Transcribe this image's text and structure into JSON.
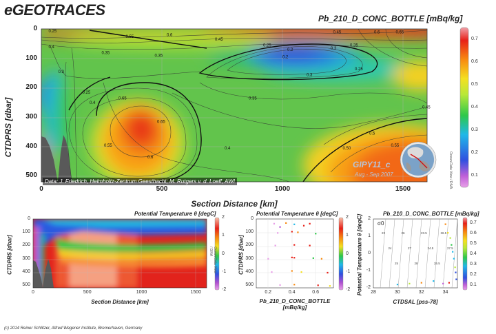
{
  "brand": "eGEOTRACES",
  "main": {
    "parameter": "Pb_210_D_CONC_BOTTLE [mBq/kg]",
    "ylabel": "CTDPRS [dbar]",
    "xlabel": "Section Distance [km]",
    "data_credit": "Data: J. Friedrich, Helmholtz-Zentrum Geesthacht; M. Rutgers v. d. Loeff, AWI",
    "cruise": "GIPY11_c",
    "cruise_date": "Aug - Sep 2007",
    "odv_label": "Ocean Data View / DIVA"
  },
  "panel_temp": {
    "title": "Potential Temperature θ [degC]",
    "ylabel": "CTDPRS [dbar]",
    "xlabel": "Section Distance [km]"
  },
  "panel_profile": {
    "title": "Potential Temperature θ [degC]",
    "ylabel": "CTDPRS [dbar]",
    "xlabel": "Pb_210_D_CONC_BOTTLE [mBq/kg]"
  },
  "panel_ts": {
    "title": "Pb_210_D_CONC_BOTTLE [mBq/kg]",
    "ylabel": "Potential Temperature θ [degC]",
    "xlabel": "CTDSAL [pss-78]",
    "sigma_label": "σ0"
  },
  "copyright": "(c) 2014 Reiner Schlitzer, Alfred Wegener Institute, Bremerhaven, Germany",
  "chart_data": [
    {
      "type": "heatmap",
      "title": "Pb_210_D_CONC_BOTTLE [mBq/kg]",
      "xlabel": "Section Distance [km]",
      "ylabel": "CTDPRS [dbar]",
      "xlim": [
        0,
        1600
      ],
      "ylim": [
        520,
        0
      ],
      "xticks": [
        0,
        500,
        1000,
        1500
      ],
      "yticks": [
        0,
        100,
        200,
        300,
        400,
        500
      ],
      "colorbar": {
        "ticks": [
          0.1,
          0.2,
          0.3,
          0.4,
          0.5,
          0.6,
          0.7
        ],
        "range": [
          0.05,
          0.75
        ]
      },
      "features": [
        {
          "x": 480,
          "y": 320,
          "value": 0.65,
          "label": "0.65"
        },
        {
          "x": 1000,
          "y": 100,
          "value": 0.2,
          "label": "0.2"
        },
        {
          "x": 1450,
          "y": 400,
          "value": 0.55,
          "label": "0.55"
        }
      ],
      "contour_labels": [
        {
          "x": 30,
          "y": 12,
          "label": "0.25"
        },
        {
          "x": 350,
          "y": 30,
          "label": "0.55"
        },
        {
          "x": 520,
          "y": 25,
          "label": "0.6"
        },
        {
          "x": 720,
          "y": 40,
          "label": "0.45"
        },
        {
          "x": 1210,
          "y": 15,
          "label": "0.45"
        },
        {
          "x": 1380,
          "y": 15,
          "label": "0.6"
        },
        {
          "x": 1470,
          "y": 15,
          "label": "0.65"
        },
        {
          "x": 30,
          "y": 65,
          "label": "0.4"
        },
        {
          "x": 250,
          "y": 85,
          "label": "0.35"
        },
        {
          "x": 470,
          "y": 95,
          "label": "0.35"
        },
        {
          "x": 70,
          "y": 150,
          "label": "0.3"
        },
        {
          "x": 920,
          "y": 60,
          "label": "0.25"
        },
        {
          "x": 1020,
          "y": 75,
          "label": "0.2"
        },
        {
          "x": 1200,
          "y": 70,
          "label": "0.3"
        },
        {
          "x": 1280,
          "y": 60,
          "label": "0.35"
        },
        {
          "x": 1300,
          "y": 140,
          "label": "0.25"
        },
        {
          "x": 200,
          "y": 255,
          "label": "0.4"
        },
        {
          "x": 170,
          "y": 220,
          "label": "0.25"
        },
        {
          "x": 260,
          "y": 400,
          "label": "0.55"
        },
        {
          "x": 440,
          "y": 440,
          "label": "0.6"
        },
        {
          "x": 860,
          "y": 240,
          "label": "0.35"
        },
        {
          "x": 760,
          "y": 410,
          "label": "0.4"
        },
        {
          "x": 1360,
          "y": 360,
          "label": "0.5"
        },
        {
          "x": 1250,
          "y": 410,
          "label": "0.50"
        },
        {
          "x": 1580,
          "y": 270,
          "label": "0.45"
        },
        {
          "x": 1100,
          "y": 160,
          "label": "0.3"
        },
        {
          "x": 320,
          "y": 240,
          "label": "0.65"
        }
      ]
    },
    {
      "type": "heatmap",
      "title": "Potential Temperature θ [degC]",
      "xlabel": "Section Distance [km]",
      "ylabel": "CTDPRS [dbar]",
      "xlim": [
        0,
        1600
      ],
      "ylim": [
        520,
        0
      ],
      "xticks": [
        0,
        500,
        1000,
        1500
      ],
      "yticks": [
        0,
        100,
        200,
        300,
        400,
        500
      ],
      "colorbar": {
        "ticks": [
          -2,
          -1,
          0,
          1,
          2
        ],
        "range": [
          -2,
          2
        ]
      }
    },
    {
      "type": "scatter",
      "title": "Potential Temperature θ [degC]",
      "xlabel": "Pb_210_D_CONC_BOTTLE [mBq/kg]",
      "ylabel": "CTDPRS [dbar]",
      "xlim": [
        0.1,
        0.75
      ],
      "ylim": [
        520,
        0
      ],
      "xticks": [
        0.2,
        0.4,
        0.6
      ],
      "yticks": [
        0,
        100,
        200,
        300,
        400,
        500
      ],
      "colorbar": {
        "ticks": [
          -2,
          -1,
          0,
          1,
          2
        ],
        "range": [
          -2,
          2
        ]
      },
      "points": [
        {
          "x": 0.25,
          "y": 35,
          "c": -1.8
        },
        {
          "x": 0.35,
          "y": 30,
          "c": 1.2
        },
        {
          "x": 0.42,
          "y": 40,
          "c": -0.5
        },
        {
          "x": 0.5,
          "y": 50,
          "c": 1.8
        },
        {
          "x": 0.3,
          "y": 60,
          "c": -1.5
        },
        {
          "x": 0.55,
          "y": 35,
          "c": 1.5
        },
        {
          "x": 0.4,
          "y": 95,
          "c": 1.6
        },
        {
          "x": 0.45,
          "y": 100,
          "c": 1.0
        },
        {
          "x": 0.28,
          "y": 105,
          "c": -1.8
        },
        {
          "x": 0.6,
          "y": 110,
          "c": 0.3
        },
        {
          "x": 0.42,
          "y": 195,
          "c": 1.5
        },
        {
          "x": 0.55,
          "y": 200,
          "c": 1.4
        },
        {
          "x": 0.26,
          "y": 200,
          "c": -1.7
        },
        {
          "x": 0.4,
          "y": 290,
          "c": 1.5
        },
        {
          "x": 0.42,
          "y": 292,
          "c": 1.6
        },
        {
          "x": 0.65,
          "y": 300,
          "c": 1.2
        },
        {
          "x": 0.58,
          "y": 295,
          "c": 0.0
        },
        {
          "x": 0.2,
          "y": 300,
          "c": -1.9
        },
        {
          "x": 0.4,
          "y": 392,
          "c": 1.3
        },
        {
          "x": 0.48,
          "y": 400,
          "c": 0.5
        },
        {
          "x": 0.7,
          "y": 405,
          "c": 1.5
        },
        {
          "x": 0.23,
          "y": 400,
          "c": -1.9
        },
        {
          "x": 0.42,
          "y": 495,
          "c": 1.2
        },
        {
          "x": 0.62,
          "y": 500,
          "c": 1.4
        },
        {
          "x": 0.72,
          "y": 505,
          "c": 0.8
        },
        {
          "x": 0.3,
          "y": 498,
          "c": -1.9
        }
      ]
    },
    {
      "type": "scatter",
      "title": "Pb_210_D_CONC_BOTTLE [mBq/kg]",
      "xlabel": "CTDSAL [pss-78]",
      "ylabel": "Potential Temperature θ [degC]",
      "xlim": [
        28,
        35
      ],
      "ylim": [
        -2,
        2
      ],
      "xticks": [
        28,
        30,
        32,
        34
      ],
      "yticks": [
        -2,
        -1,
        0,
        1,
        2
      ],
      "colorbar": {
        "ticks": [
          0.1,
          0.2,
          0.3,
          0.4,
          0.5,
          0.6,
          0.7
        ],
        "range": [
          0.05,
          0.75
        ]
      },
      "points": [
        {
          "x": 34.0,
          "y": 1.7,
          "c": 0.6
        },
        {
          "x": 34.2,
          "y": 1.2,
          "c": 0.55
        },
        {
          "x": 34.4,
          "y": 0.9,
          "c": 0.45
        },
        {
          "x": 34.5,
          "y": 0.5,
          "c": 0.4
        },
        {
          "x": 34.6,
          "y": 0.1,
          "c": 0.35
        },
        {
          "x": 34.7,
          "y": -0.3,
          "c": 0.3
        },
        {
          "x": 34.8,
          "y": -0.8,
          "c": 0.5
        },
        {
          "x": 34.85,
          "y": -1.1,
          "c": 0.25
        },
        {
          "x": 34.9,
          "y": -1.5,
          "c": 0.2
        },
        {
          "x": 33.0,
          "y": -1.6,
          "c": 0.3
        },
        {
          "x": 32.0,
          "y": -1.7,
          "c": 0.6
        },
        {
          "x": 31.0,
          "y": -1.75,
          "c": 0.45
        },
        {
          "x": 30.0,
          "y": -1.8,
          "c": 0.35
        },
        {
          "x": 34.3,
          "y": -1.7,
          "c": 0.7
        },
        {
          "x": 33.8,
          "y": -1.75,
          "c": 0.15
        }
      ],
      "isopycnal_labels": [
        "23",
        "24",
        "25",
        "26",
        "27",
        "28",
        "23.5",
        "24.5",
        "25.5",
        "26.5",
        "27.5"
      ]
    }
  ]
}
